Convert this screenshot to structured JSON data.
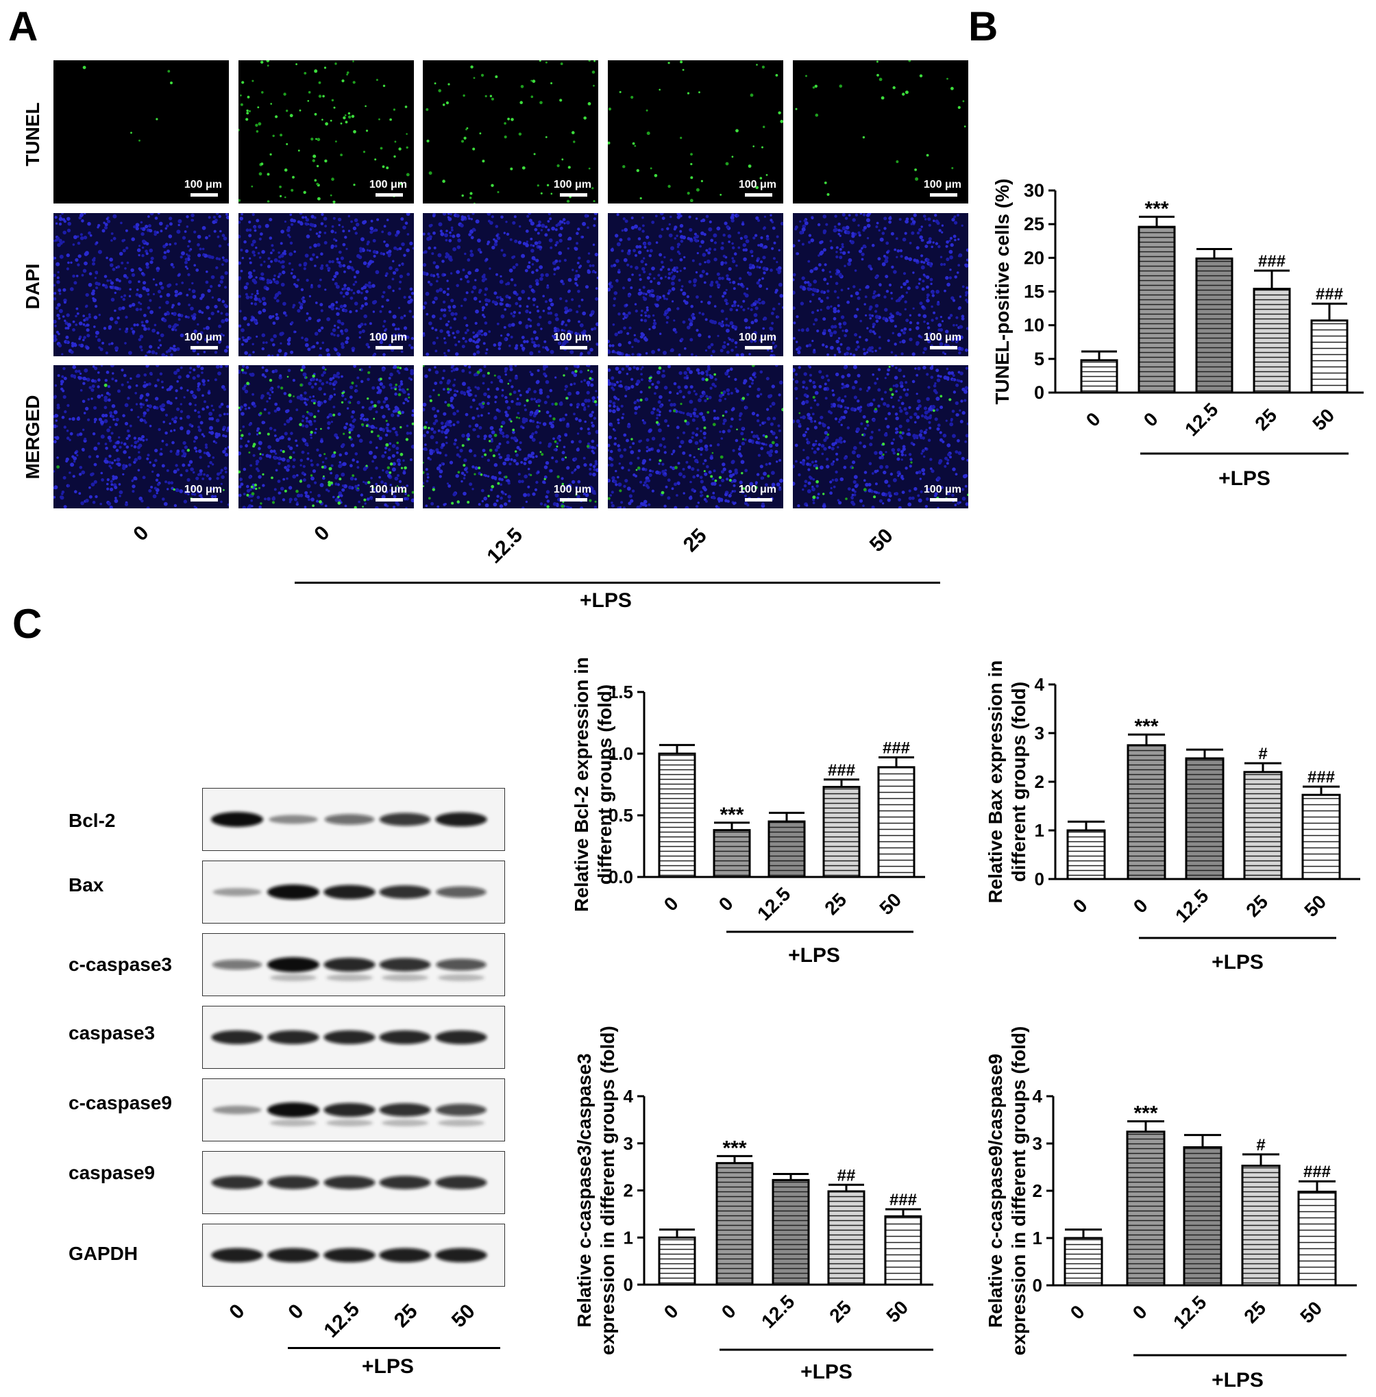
{
  "panels": {
    "A": "A",
    "B": "B",
    "C": "C"
  },
  "panelA": {
    "rows": [
      "TUNEL",
      "DAPI",
      "MERGED"
    ],
    "scale_label": "100 μm",
    "columns": [
      "0",
      "0",
      "12.5",
      "25",
      "50"
    ],
    "lps_label": "+LPS"
  },
  "blot": {
    "proteins": [
      "Bcl-2",
      "Bax",
      "c-caspase3",
      "caspase3",
      "c-caspase9",
      "caspase9",
      "GAPDH"
    ],
    "lanes": [
      "0",
      "0",
      "12.5",
      "25",
      "50"
    ],
    "lps_label": "+LPS",
    "intensity": [
      [
        1.0,
        0.25,
        0.45,
        0.75,
        0.9
      ],
      [
        0.15,
        1.0,
        0.9,
        0.8,
        0.55
      ],
      [
        0.4,
        1.0,
        0.85,
        0.8,
        0.6
      ],
      [
        0.85,
        0.85,
        0.85,
        0.85,
        0.85
      ],
      [
        0.2,
        1.0,
        0.85,
        0.8,
        0.65
      ],
      [
        0.8,
        0.8,
        0.8,
        0.8,
        0.8
      ],
      [
        0.9,
        0.9,
        0.9,
        0.9,
        0.9
      ]
    ]
  },
  "chart_data": [
    {
      "id": "B",
      "type": "bar",
      "categories": [
        "0",
        "0",
        "12.5",
        "25",
        "50"
      ],
      "values": [
        4.8,
        24.6,
        19.9,
        15.4,
        10.7
      ],
      "errors": [
        1.3,
        1.5,
        1.4,
        2.7,
        2.5
      ],
      "annotations": [
        "",
        "***",
        "",
        "###",
        "###"
      ],
      "ylabel": "TUNEL-positive cells (%)",
      "ylim": [
        0,
        30
      ],
      "yticks": [
        "0",
        "5",
        "10",
        "15",
        "20",
        "25",
        "30"
      ],
      "group_label": "+LPS"
    },
    {
      "id": "C1",
      "type": "bar",
      "categories": [
        "0",
        "0",
        "12.5",
        "25",
        "50"
      ],
      "values": [
        1.0,
        0.38,
        0.45,
        0.73,
        0.89
      ],
      "errors": [
        0.07,
        0.06,
        0.07,
        0.06,
        0.08
      ],
      "annotations": [
        "",
        "***",
        "",
        "###",
        "###"
      ],
      "ylabel": [
        "Relative Bcl-2 expression in",
        "different groups (fold)"
      ],
      "ylim": [
        0,
        1.5
      ],
      "yticks": [
        "0.0",
        "0.5",
        "1.0",
        "1.5"
      ],
      "group_label": "+LPS"
    },
    {
      "id": "C2",
      "type": "bar",
      "categories": [
        "0",
        "0",
        "12.5",
        "25",
        "50"
      ],
      "values": [
        1.0,
        2.75,
        2.48,
        2.2,
        1.73
      ],
      "errors": [
        0.18,
        0.22,
        0.18,
        0.18,
        0.17
      ],
      "annotations": [
        "",
        "***",
        "",
        "#",
        "###"
      ],
      "ylabel": [
        "Relative Bax expression in",
        "different groups (fold)"
      ],
      "ylim": [
        0,
        4
      ],
      "yticks": [
        "0",
        "1",
        "2",
        "3",
        "4"
      ],
      "group_label": "+LPS"
    },
    {
      "id": "C3",
      "type": "bar",
      "categories": [
        "0",
        "0",
        "12.5",
        "25",
        "50"
      ],
      "values": [
        1.0,
        2.58,
        2.22,
        1.98,
        1.45
      ],
      "errors": [
        0.17,
        0.15,
        0.13,
        0.14,
        0.15
      ],
      "annotations": [
        "",
        "***",
        "",
        "##",
        "###"
      ],
      "ylabel": [
        "Relative c-caspase3/caspase3",
        "expression in different groups (fold)"
      ],
      "ylim": [
        0,
        4
      ],
      "yticks": [
        "0",
        "1",
        "2",
        "3",
        "4"
      ],
      "group_label": "+LPS"
    },
    {
      "id": "C4",
      "type": "bar",
      "categories": [
        "0",
        "0",
        "12.5",
        "25",
        "50"
      ],
      "values": [
        1.0,
        3.25,
        2.92,
        2.53,
        1.98
      ],
      "errors": [
        0.18,
        0.22,
        0.26,
        0.24,
        0.22
      ],
      "annotations": [
        "",
        "***",
        "",
        "#",
        "###"
      ],
      "ylabel": [
        "Relative c-caspase9/caspase9",
        "expression in different groups (fold)"
      ],
      "ylim": [
        0,
        4
      ],
      "yticks": [
        "0",
        "1",
        "2",
        "3",
        "4"
      ],
      "group_label": "+LPS"
    }
  ]
}
